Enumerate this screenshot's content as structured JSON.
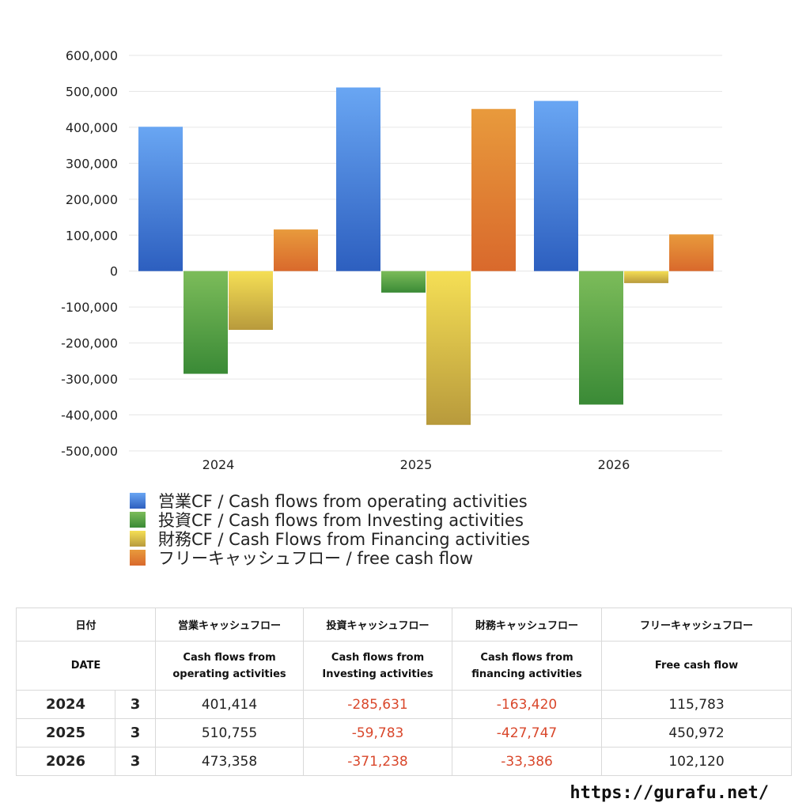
{
  "chart_data": {
    "type": "bar",
    "categories": [
      "2024",
      "2025",
      "2026"
    ],
    "series": [
      {
        "name": "営業CF / Cash flows from operating activities",
        "values": [
          401414,
          510755,
          473358
        ],
        "color_top": "#69a6f3",
        "color_bottom": "#2d5fbf"
      },
      {
        "name": "投資CF / Cash flows from Investing activities",
        "values": [
          -285631,
          -59783,
          -371238
        ],
        "color_top": "#7cbc5a",
        "color_bottom": "#3a8a36"
      },
      {
        "name": "財務CF / Cash Flows from Financing activities",
        "values": [
          -163420,
          -427747,
          -33386
        ],
        "color_top": "#f5df55",
        "color_bottom": "#b89a3c"
      },
      {
        "name": "フリーキャッシュフロー / free cash flow",
        "values": [
          115783,
          450972,
          102120
        ],
        "color_top": "#e89a3c",
        "color_bottom": "#d9692c"
      }
    ],
    "ylim": [
      -500000,
      600000
    ],
    "yticks": [
      "600,000",
      "500,000",
      "400,000",
      "300,000",
      "200,000",
      "100,000",
      "0",
      "-100,000",
      "-200,000",
      "-300,000",
      "-400,000",
      "-500,000"
    ],
    "ytick_values": [
      600000,
      500000,
      400000,
      300000,
      200000,
      100000,
      0,
      -100000,
      -200000,
      -300000,
      -400000,
      -500000
    ],
    "grid": true,
    "legend_position": "bottom"
  },
  "table": {
    "headers_jp": [
      "日付",
      "営業キャッシュフロー",
      "投資キャッシュフロー",
      "財務キャッシュフロー",
      "フリーキャッシュフロー"
    ],
    "headers_en": [
      "DATE",
      "Cash flows from",
      "operating activities",
      "Cash flows from",
      "Investing activities",
      "Cash flows from",
      "financing activities",
      "Free cash flow"
    ],
    "rows": [
      {
        "year": "2024",
        "month": "3",
        "operating": "401,414",
        "investing": "-285,631",
        "financing": "-163,420",
        "free": "115,783"
      },
      {
        "year": "2025",
        "month": "3",
        "operating": "510,755",
        "investing": "-59,783",
        "financing": "-427,747",
        "free": "450,972"
      },
      {
        "year": "2026",
        "month": "3",
        "operating": "473,358",
        "investing": "-371,238",
        "financing": "-33,386",
        "free": "102,120"
      }
    ]
  },
  "site_url": "https://gurafu.net/"
}
